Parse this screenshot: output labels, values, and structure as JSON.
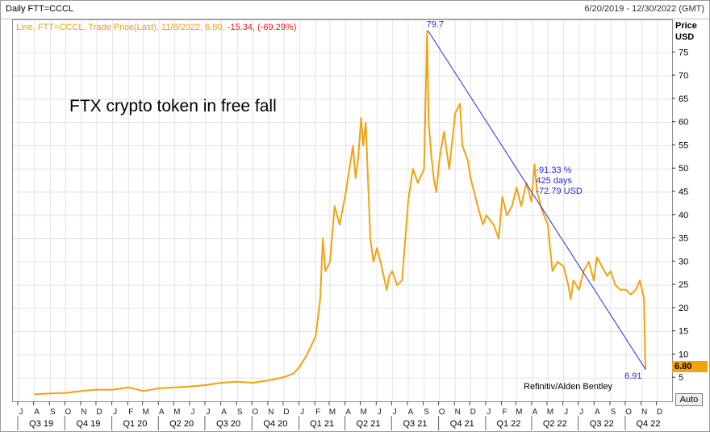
{
  "header": {
    "title": "Daily FTT=CCCL",
    "date_range": "6/20/2019 - 12/30/2022 (GMT)"
  },
  "legend": {
    "prefix": "Line, FTT=CCCL, Trade Price(Last), 11/8/2022, 6.80,",
    "change": "-15.34, (-69.29%)"
  },
  "annotations": {
    "title": "FTX crypto token in free fall",
    "credit": "Refinitiv/Alden Bentley"
  },
  "y_axis": {
    "title_line1": "Price",
    "title_line2": "USD",
    "last_price": "6.80"
  },
  "controls": {
    "auto_label": "Auto"
  },
  "chart_data": {
    "type": "line",
    "title": "FTX crypto token in free fall",
    "ylabel": "Price USD",
    "ylim": [
      0,
      82
    ],
    "yticks": [
      5,
      10,
      15,
      20,
      25,
      30,
      35,
      40,
      45,
      50,
      55,
      60,
      65,
      70,
      75
    ],
    "xlim": [
      "2019-06-20",
      "2022-12-30"
    ],
    "month_labels": [
      "J",
      "A",
      "S",
      "O",
      "N",
      "D",
      "J",
      "F",
      "M",
      "A",
      "M",
      "J",
      "J",
      "A",
      "S",
      "O",
      "N",
      "D",
      "J",
      "F",
      "M",
      "A",
      "M",
      "J",
      "J",
      "A",
      "S",
      "O",
      "N",
      "D",
      "J",
      "F",
      "M",
      "A",
      "M",
      "J",
      "J",
      "A",
      "S",
      "O",
      "N",
      "D"
    ],
    "quarter_labels": [
      "Q3 19",
      "Q4 19",
      "Q1 20",
      "Q2 20",
      "Q3 20",
      "Q4 20",
      "Q1 21",
      "Q2 21",
      "Q3 21",
      "Q4 21",
      "Q1 22",
      "Q2 22",
      "Q3 22",
      "Q4 22"
    ],
    "series": [
      {
        "color": "#f2a30f",
        "points": [
          [
            "2019-08-01",
            1.5
          ],
          [
            "2019-09-01",
            1.7
          ],
          [
            "2019-10-01",
            1.8
          ],
          [
            "2019-11-01",
            2.2
          ],
          [
            "2019-12-01",
            2.5
          ],
          [
            "2020-01-01",
            2.5
          ],
          [
            "2020-02-01",
            3.0
          ],
          [
            "2020-03-01",
            2.2
          ],
          [
            "2020-04-01",
            2.8
          ],
          [
            "2020-05-01",
            3.0
          ],
          [
            "2020-06-01",
            3.2
          ],
          [
            "2020-07-01",
            3.5
          ],
          [
            "2020-08-01",
            4.0
          ],
          [
            "2020-09-01",
            4.2
          ],
          [
            "2020-10-01",
            4.0
          ],
          [
            "2020-11-01",
            4.5
          ],
          [
            "2020-12-01",
            5.2
          ],
          [
            "2020-12-20",
            6.0
          ],
          [
            "2021-01-01",
            7.5
          ],
          [
            "2021-01-15",
            10
          ],
          [
            "2021-02-01",
            14
          ],
          [
            "2021-02-10",
            22
          ],
          [
            "2021-02-15",
            35
          ],
          [
            "2021-02-20",
            28
          ],
          [
            "2021-03-01",
            30
          ],
          [
            "2021-03-10",
            42
          ],
          [
            "2021-03-20",
            38
          ],
          [
            "2021-04-01",
            45
          ],
          [
            "2021-04-15",
            55
          ],
          [
            "2021-04-20",
            48
          ],
          [
            "2021-04-25",
            52
          ],
          [
            "2021-05-01",
            61
          ],
          [
            "2021-05-05",
            55
          ],
          [
            "2021-05-10",
            60
          ],
          [
            "2021-05-19",
            35
          ],
          [
            "2021-05-25",
            30
          ],
          [
            "2021-06-01",
            33
          ],
          [
            "2021-06-10",
            29
          ],
          [
            "2021-06-20",
            24
          ],
          [
            "2021-06-25",
            27
          ],
          [
            "2021-07-01",
            28
          ],
          [
            "2021-07-10",
            25
          ],
          [
            "2021-07-20",
            26
          ],
          [
            "2021-07-25",
            33
          ],
          [
            "2021-08-01",
            43
          ],
          [
            "2021-08-10",
            50
          ],
          [
            "2021-08-20",
            47
          ],
          [
            "2021-09-01",
            50
          ],
          [
            "2021-09-07",
            79.7
          ],
          [
            "2021-09-10",
            60
          ],
          [
            "2021-09-15",
            53
          ],
          [
            "2021-09-20",
            48
          ],
          [
            "2021-09-25",
            45
          ],
          [
            "2021-10-01",
            52
          ],
          [
            "2021-10-10",
            58
          ],
          [
            "2021-10-20",
            50
          ],
          [
            "2021-11-01",
            62
          ],
          [
            "2021-11-10",
            64
          ],
          [
            "2021-11-15",
            55
          ],
          [
            "2021-11-25",
            52
          ],
          [
            "2021-12-01",
            48
          ],
          [
            "2021-12-15",
            42
          ],
          [
            "2021-12-25",
            38
          ],
          [
            "2022-01-01",
            40
          ],
          [
            "2022-01-15",
            38
          ],
          [
            "2022-01-25",
            35
          ],
          [
            "2022-02-01",
            44
          ],
          [
            "2022-02-10",
            40
          ],
          [
            "2022-02-20",
            42
          ],
          [
            "2022-03-01",
            46
          ],
          [
            "2022-03-10",
            42
          ],
          [
            "2022-03-20",
            47
          ],
          [
            "2022-03-30",
            43
          ],
          [
            "2022-04-05",
            51
          ],
          [
            "2022-04-10",
            45
          ],
          [
            "2022-04-20",
            41
          ],
          [
            "2022-05-01",
            38
          ],
          [
            "2022-05-10",
            28
          ],
          [
            "2022-05-20",
            30
          ],
          [
            "2022-06-01",
            29
          ],
          [
            "2022-06-10",
            25
          ],
          [
            "2022-06-15",
            22
          ],
          [
            "2022-06-20",
            26
          ],
          [
            "2022-07-01",
            24
          ],
          [
            "2022-07-10",
            28
          ],
          [
            "2022-07-20",
            30
          ],
          [
            "2022-07-30",
            26
          ],
          [
            "2022-08-05",
            31
          ],
          [
            "2022-08-15",
            29
          ],
          [
            "2022-08-25",
            27
          ],
          [
            "2022-09-01",
            28
          ],
          [
            "2022-09-10",
            25
          ],
          [
            "2022-09-20",
            24
          ],
          [
            "2022-10-01",
            24
          ],
          [
            "2022-10-10",
            23
          ],
          [
            "2022-10-20",
            24
          ],
          [
            "2022-10-28",
            26
          ],
          [
            "2022-11-05",
            22.3
          ],
          [
            "2022-11-08",
            6.8
          ]
        ]
      }
    ],
    "trendline": {
      "color": "#2a2ad8",
      "start": [
        "2021-09-09",
        79.7
      ],
      "end": [
        "2022-11-08",
        6.91
      ],
      "start_label": "79.7",
      "end_label": "6.91",
      "stats": [
        "-91.33 %",
        "425 days",
        "-72.79 USD"
      ]
    },
    "grid": true
  }
}
